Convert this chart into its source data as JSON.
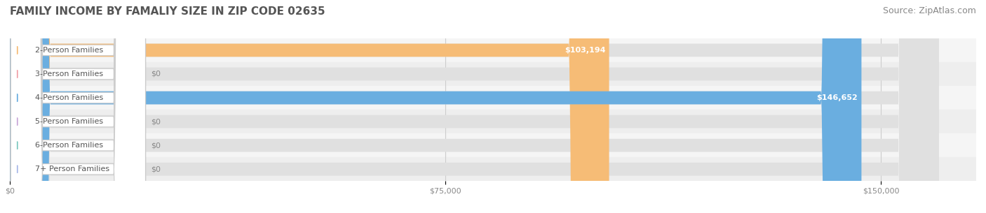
{
  "title": "FAMILY INCOME BY FAMALIY SIZE IN ZIP CODE 02635",
  "source": "Source: ZipAtlas.com",
  "categories": [
    "2-Person Families",
    "3-Person Families",
    "4-Person Families",
    "5-Person Families",
    "6-Person Families",
    "7+ Person Families"
  ],
  "values": [
    103194,
    0,
    146652,
    0,
    0,
    0
  ],
  "bar_colors": [
    "#f6bc76",
    "#f0a0a8",
    "#6aaee0",
    "#c9a8d8",
    "#7ec8c0",
    "#a8b8e8"
  ],
  "value_labels": [
    "$103,194",
    "$0",
    "$146,652",
    "$0",
    "$0",
    "$0"
  ],
  "xlim": [
    0,
    160000
  ],
  "xticks": [
    0,
    75000,
    150000
  ],
  "xtick_labels": [
    "$0",
    "$75,000",
    "$150,000"
  ],
  "bg_color": "#ffffff",
  "title_color": "#555555",
  "source_color": "#888888",
  "title_fontsize": 11,
  "source_fontsize": 9,
  "label_fontsize": 8,
  "value_fontsize": 8,
  "tick_fontsize": 8,
  "bar_height": 0.55
}
